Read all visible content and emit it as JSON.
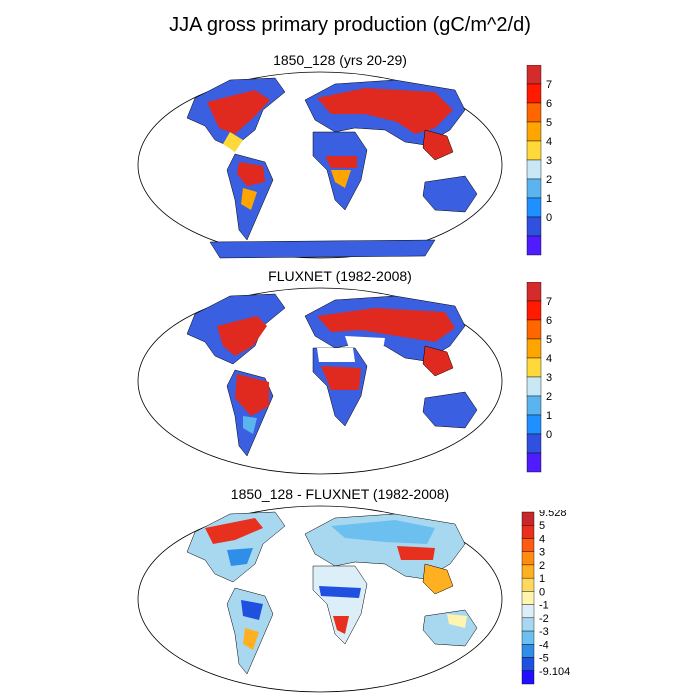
{
  "title": "JJA gross primary production (gC/m^2/d)",
  "panels": [
    {
      "id": "model",
      "title": "1850_128 (yrs 20-29)",
      "palette": "gpp",
      "colorbar": {
        "labels": [
          "7",
          "6",
          "5",
          "4",
          "3",
          "2",
          "1",
          "0"
        ],
        "colors": [
          "#d42c2c",
          "#ff1a00",
          "#ff6600",
          "#ffa500",
          "#ffd83a",
          "#c8e8f5",
          "#5ab4f0",
          "#1e90ff",
          "#3050e0",
          "#4f1cff"
        ]
      }
    },
    {
      "id": "fluxnet",
      "title": "FLUXNET (1982-2008)",
      "palette": "gpp",
      "colorbar": {
        "labels": [
          "7",
          "6",
          "5",
          "4",
          "3",
          "2",
          "1",
          "0"
        ],
        "colors": [
          "#d42c2c",
          "#ff1a00",
          "#ff6600",
          "#ffa500",
          "#ffd83a",
          "#c8e8f5",
          "#5ab4f0",
          "#1e90ff",
          "#3050e0",
          "#4f1cff"
        ]
      }
    },
    {
      "id": "difference",
      "title": "1850_128 - FLUXNET (1982-2008)",
      "palette": "diff",
      "colorbar": {
        "labels": [
          "9.528",
          "5",
          "4",
          "3",
          "2",
          "1",
          "0",
          "-1",
          "-2",
          "-3",
          "-4",
          "-5",
          "-9.104"
        ],
        "colors": [
          "#c8282b",
          "#e8301f",
          "#ff5a14",
          "#ff8c10",
          "#ffb020",
          "#ffd860",
          "#fff5b0",
          "#dceef8",
          "#a8d8f0",
          "#6cc0f0",
          "#2e8ee8",
          "#2050e0",
          "#2010ff"
        ]
      }
    }
  ],
  "map_colors": {
    "land_low": "#3a5fe0",
    "land_high": "#e02a20",
    "ocean": "#ffffff",
    "coast": "#000000"
  }
}
